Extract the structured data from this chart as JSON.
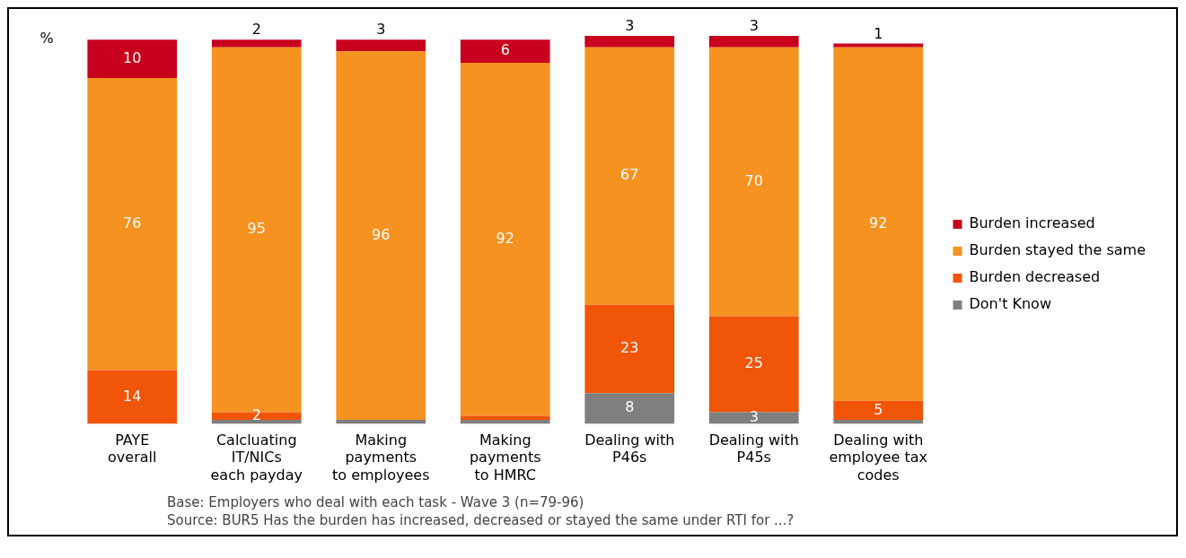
{
  "chart_data": {
    "type": "bar",
    "stacked": true,
    "ylabel": "%",
    "ylim": [
      0,
      101
    ],
    "tick_labels": "x",
    "grid": false,
    "legend": "right",
    "categories": [
      "PAYE\noverall",
      "Calcluating\nIT/NICs\neach payday",
      "Making\npayments\nto employees",
      "Making\npayments\nto HMRC",
      "Dealing with\nP46s",
      "Dealing with\nP45s",
      "Dealing with\nemployee tax\ncodes"
    ],
    "series": [
      {
        "name": "Don't Know",
        "color": "#7f7f7f",
        "values": [
          0,
          1,
          1,
          1,
          8,
          3,
          1
        ],
        "value_labels": [
          null,
          null,
          null,
          null,
          "8",
          "3",
          null
        ]
      },
      {
        "name": "Burden decreased",
        "color": "#f05508",
        "values": [
          14,
          2,
          0,
          1,
          23,
          25,
          5
        ],
        "value_labels": [
          "14",
          "2",
          null,
          null,
          "23",
          "25",
          "5"
        ]
      },
      {
        "name": "Burden stayed the same",
        "color": "#f59220",
        "values": [
          76,
          95,
          96,
          92,
          67,
          70,
          92
        ],
        "value_labels": [
          "76",
          "95",
          "96",
          "92",
          "67",
          "70",
          "92"
        ]
      },
      {
        "name": "Burden increased",
        "color": "#c8001e",
        "values": [
          10,
          2,
          3,
          6,
          3,
          3,
          1
        ],
        "value_labels": [
          "10",
          "2",
          "3",
          "6",
          "3",
          "3",
          "1"
        ]
      }
    ],
    "annotations": [
      "Base: Employers who deal with each task - Wave 3 (n=79-96)",
      "Source: BUR5 Has the burden has increased, decreased or stayed the same under RTI for ...?"
    ]
  }
}
